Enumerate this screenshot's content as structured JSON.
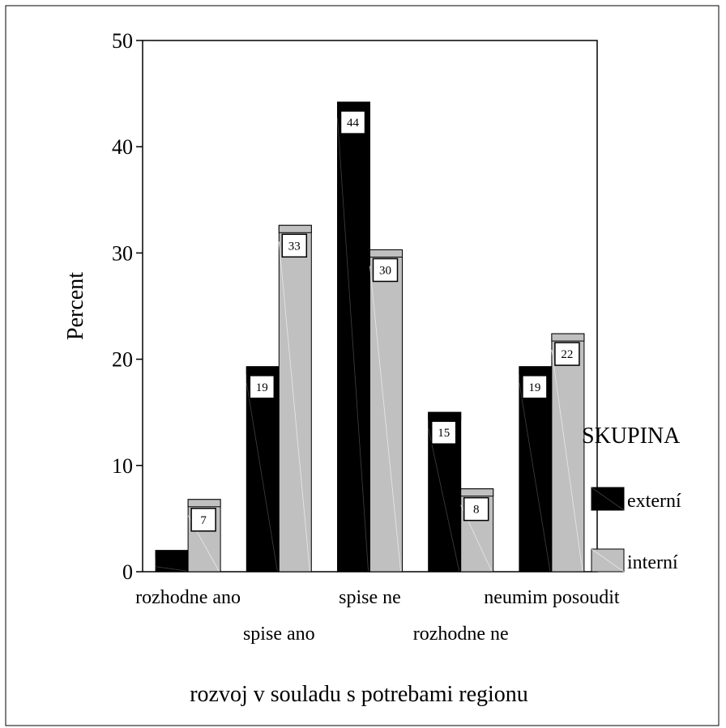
{
  "chart_data": {
    "type": "bar",
    "categories": [
      "rozhodne ano",
      "spise ano",
      "spise ne",
      "rozhodne ne",
      "neumim posoudit"
    ],
    "series": [
      {
        "name": "externí",
        "values": [
          2,
          19.3,
          44.2,
          15,
          19.3
        ],
        "labels": [
          "",
          "19",
          "44",
          "15",
          "19"
        ]
      },
      {
        "name": "interní",
        "values": [
          6.8,
          32.6,
          30.3,
          7.8,
          22.4
        ],
        "labels": [
          "7",
          "33",
          "30",
          "8",
          "22"
        ]
      }
    ],
    "title": "",
    "xlabel": "rozvoj v souladu s potrebami regionu",
    "ylabel": "Percent",
    "ylim": [
      0,
      50
    ],
    "yticks": [
      0,
      10,
      20,
      30,
      40,
      50
    ],
    "grid": false,
    "legend": {
      "title": "SKUPINA",
      "position": "right"
    },
    "colors": {
      "externí": "#000000",
      "interní": "#c0c0c0"
    }
  }
}
